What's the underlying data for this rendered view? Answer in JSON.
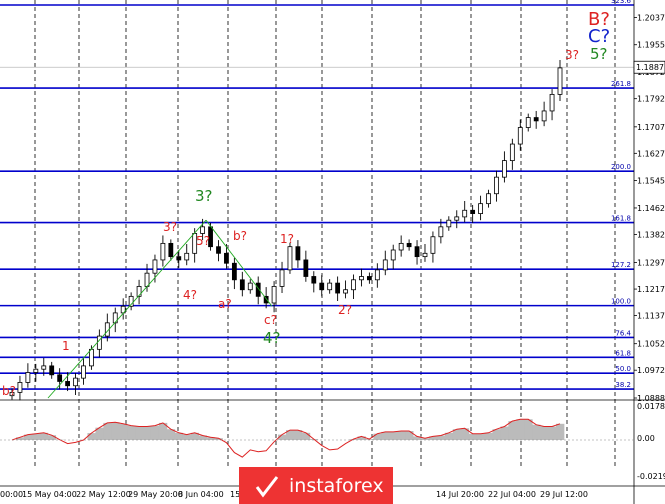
{
  "chart_data": [
    {
      "type": "candlestick",
      "price_axis": {
        "ticks": [
          "1.2037",
          "1.1955",
          "1.1872",
          "1.1792",
          "1.1707",
          "1.1627",
          "1.1545",
          "1.1462",
          "1.1382",
          "1.1297",
          "1.1217",
          "1.1137",
          "1.1052",
          "1.0972",
          "1.0888"
        ],
        "current_price": "1.1887"
      },
      "time_axis": {
        "labels": [
          "00:00",
          "15 May 04:00",
          "22 May 12:00",
          "29 May 20:00",
          "8 Jun 04:00",
          "15 J",
          "14 Jul 20:00",
          "22 Jul 04:00",
          "29 Jul 12:00"
        ]
      },
      "fibonacci_levels": [
        {
          "label": "323.6",
          "price": 1.2075
        },
        {
          "label": "261.8",
          "price": 1.1824
        },
        {
          "label": "200.0",
          "price": 1.1573
        },
        {
          "label": "161.8",
          "price": 1.1418
        },
        {
          "label": "127.2",
          "price": 1.1277
        },
        {
          "label": "100.0",
          "price": 1.1167
        },
        {
          "label": "76.4",
          "price": 1.1071
        },
        {
          "label": "61.8",
          "price": 1.1011
        },
        {
          "label": "50.0",
          "price": 1.0963
        },
        {
          "label": "38.2",
          "price": 1.0915
        }
      ],
      "wave_labels": [
        {
          "text": "b?",
          "color": "#dd2222",
          "size": "small"
        },
        {
          "text": "1",
          "color": "#dd2222",
          "size": "small"
        },
        {
          "text": "3?",
          "color": "#dd2222",
          "size": "small"
        },
        {
          "text": "5?",
          "color": "#dd2222",
          "size": "small"
        },
        {
          "text": "3?",
          "color": "#228822",
          "size": "medium"
        },
        {
          "text": "4?",
          "color": "#dd2222",
          "size": "small"
        },
        {
          "text": "b?",
          "color": "#dd2222",
          "size": "small"
        },
        {
          "text": "a?",
          "color": "#dd2222",
          "size": "small"
        },
        {
          "text": "c?",
          "color": "#dd2222",
          "size": "small"
        },
        {
          "text": "4?",
          "color": "#228822",
          "size": "medium"
        },
        {
          "text": "1?",
          "color": "#dd2222",
          "size": "small"
        },
        {
          "text": "2?",
          "color": "#dd2222",
          "size": "small"
        },
        {
          "text": "3?",
          "color": "#dd2222",
          "size": "small"
        },
        {
          "text": "B?",
          "color": "#dd2222",
          "size": "large"
        },
        {
          "text": "C?",
          "color": "#1122cc",
          "size": "large"
        },
        {
          "text": "5?",
          "color": "#228822",
          "size": "medium"
        }
      ],
      "close_series": [
        1.0905,
        1.0935,
        1.0965,
        1.0975,
        1.0985,
        1.0958,
        1.0938,
        1.0925,
        1.0948,
        1.0985,
        1.1035,
        1.1075,
        1.1115,
        1.1145,
        1.1165,
        1.1195,
        1.1225,
        1.1265,
        1.1305,
        1.1355,
        1.1315,
        1.1305,
        1.1325,
        1.1385,
        1.1405,
        1.1345,
        1.1325,
        1.1295,
        1.1245,
        1.1215,
        1.1235,
        1.1195,
        1.1175,
        1.1225,
        1.1275,
        1.1345,
        1.1305,
        1.1255,
        1.1235,
        1.1215,
        1.1235,
        1.1205,
        1.1215,
        1.1245,
        1.1255,
        1.1245,
        1.1275,
        1.1305,
        1.1335,
        1.1355,
        1.1345,
        1.1315,
        1.1325,
        1.1375,
        1.1405,
        1.1425,
        1.1435,
        1.1455,
        1.1445,
        1.1475,
        1.1505,
        1.1555,
        1.1605,
        1.1655,
        1.1705,
        1.1735,
        1.1725,
        1.1755,
        1.1805,
        1.1885
      ],
      "oscillator": {
        "ticks": [
          "0.01782",
          "0.00",
          "-0.02198"
        ]
      }
    }
  ],
  "watermark": {
    "text": "instaforex"
  }
}
